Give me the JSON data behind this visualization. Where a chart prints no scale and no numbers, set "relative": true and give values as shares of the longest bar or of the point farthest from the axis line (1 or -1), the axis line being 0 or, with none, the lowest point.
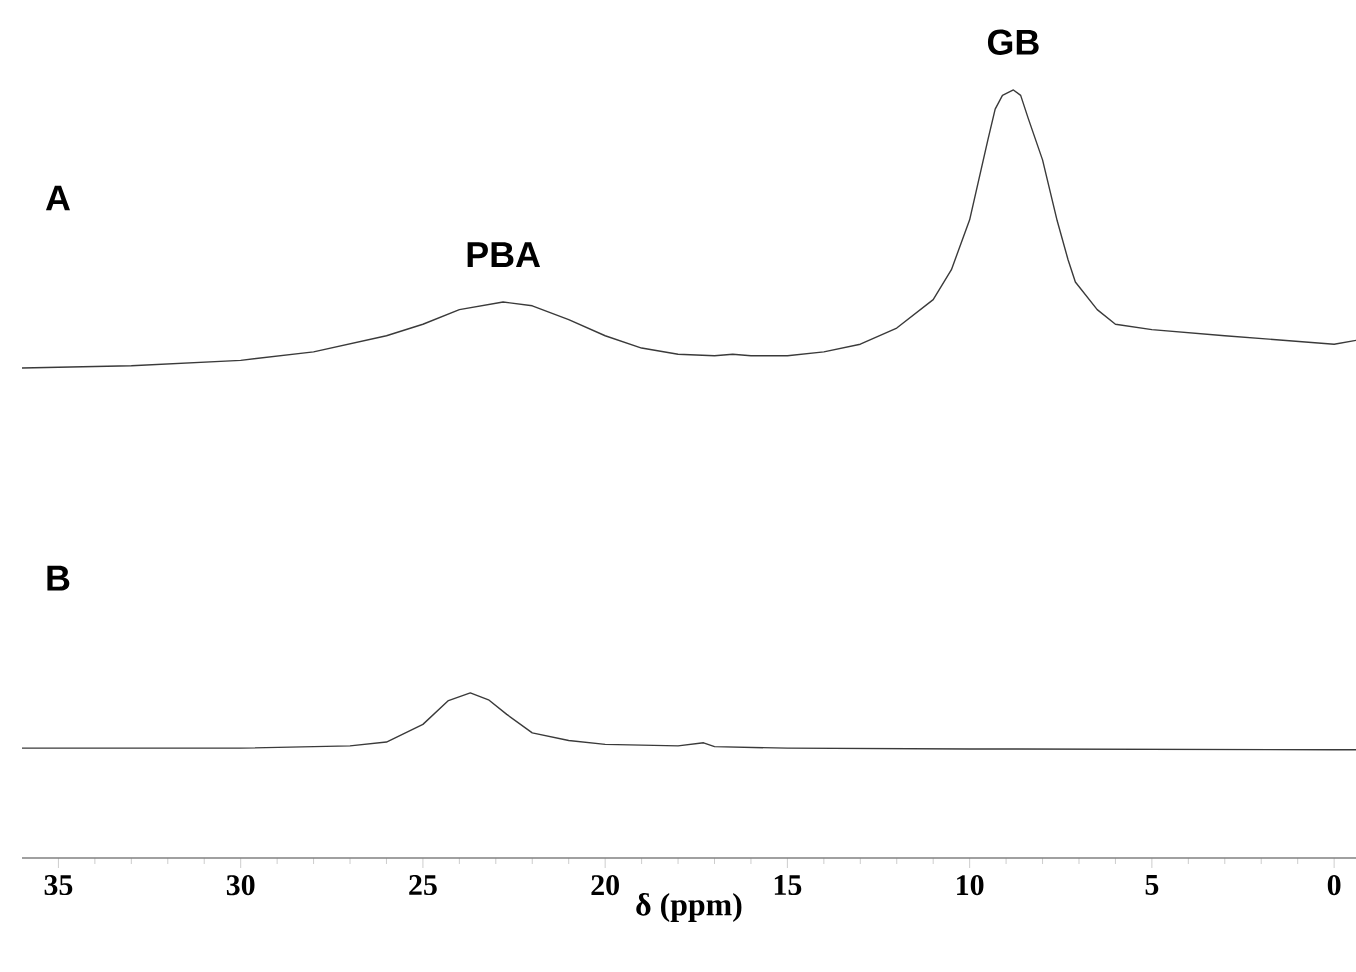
{
  "chart_data": {
    "type": "line",
    "relative": true,
    "xlim": [
      36,
      -0.6
    ],
    "xticks": [
      35,
      30,
      25,
      20,
      15,
      10,
      5,
      0
    ],
    "tick_labels": "x",
    "xlabel": "δ (ppm)",
    "series": [
      {
        "color": "#3a3a3a",
        "x": [
          36,
          33,
          30,
          28,
          26,
          25,
          24,
          22.8,
          22,
          21,
          20,
          19,
          18,
          17,
          16.5,
          16,
          15,
          14,
          13,
          12,
          11,
          10.5,
          10,
          9.5,
          9.3,
          9.1,
          8.8,
          8.6,
          8.4,
          8,
          7.6,
          7.3,
          7.1,
          6.5,
          6,
          5,
          3,
          0,
          -0.6
        ],
        "values": [
          0.638,
          0.641,
          0.648,
          0.659,
          0.68,
          0.695,
          0.714,
          0.724,
          0.719,
          0.701,
          0.68,
          0.664,
          0.656,
          0.654,
          0.656,
          0.654,
          0.654,
          0.659,
          0.669,
          0.69,
          0.727,
          0.766,
          0.831,
          0.935,
          0.975,
          0.993,
          1,
          0.993,
          0.964,
          0.909,
          0.83,
          0.779,
          0.75,
          0.714,
          0.695,
          0.688,
          0.68,
          0.669,
          0.674
        ]
      },
      {
        "color": "#3a3a3a",
        "x": [
          36,
          30,
          27,
          26,
          25,
          24.3,
          23.7,
          23.2,
          22.7,
          22,
          21,
          20,
          18,
          17.3,
          17,
          15,
          10,
          0,
          -0.6
        ],
        "values": [
          0.143,
          0.143,
          0.146,
          0.151,
          0.174,
          0.205,
          0.215,
          0.206,
          0.187,
          0.163,
          0.153,
          0.148,
          0.146,
          0.15,
          0.145,
          0.143,
          0.142,
          0.141,
          0.141
        ]
      }
    ],
    "annotations": [
      "A",
      {
        "text": "PBA",
        "x": 22.8,
        "y": 0.724
      },
      {
        "text": "GB",
        "x": 8.8,
        "y": 1
      },
      "B"
    ]
  }
}
